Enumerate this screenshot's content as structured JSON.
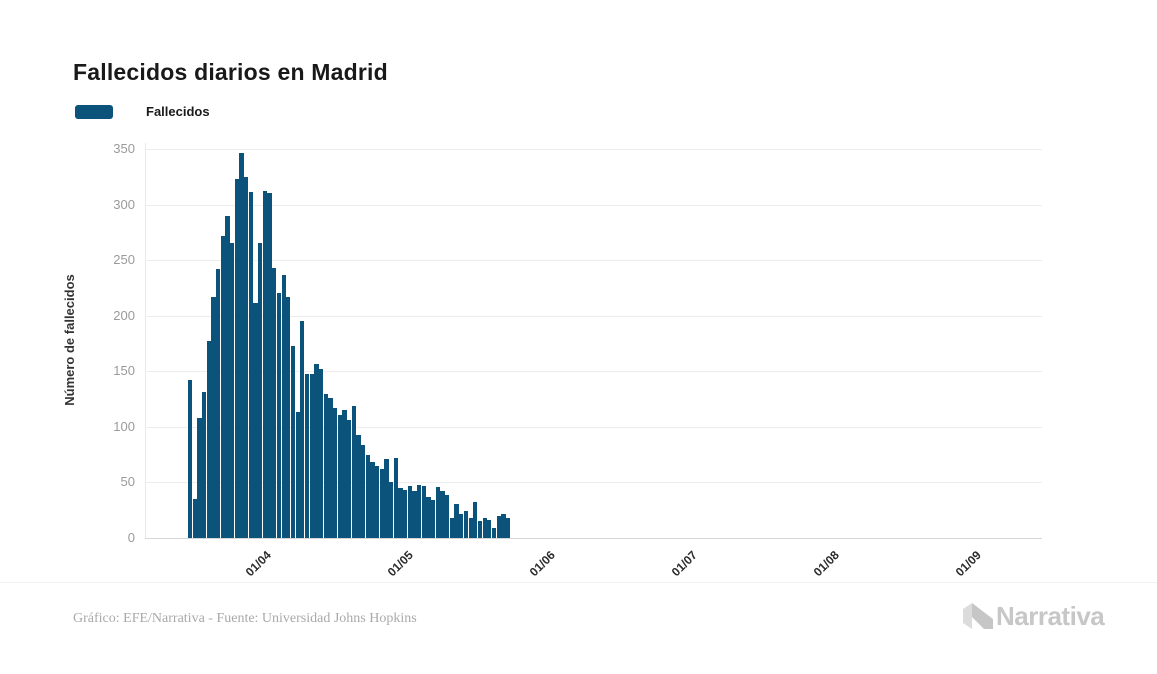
{
  "title": "Fallecidos diarios en Madrid",
  "legend": {
    "label": "Fallecidos",
    "swatch_color": "#0b537a"
  },
  "chart_data": {
    "type": "bar",
    "title": "Fallecidos diarios en Madrid",
    "xlabel": "",
    "ylabel": "Número de fallecidos",
    "ylim": [
      0,
      350
    ],
    "yticks": [
      0,
      50,
      100,
      150,
      200,
      250,
      300,
      350
    ],
    "xtick_labels": [
      "01/04",
      "01/05",
      "01/06",
      "01/07",
      "01/08",
      "01/09"
    ],
    "grid": "horizontal-only",
    "legend_position": "top-left",
    "series": [
      {
        "name": "Fallecidos",
        "color": "#0b537a",
        "values": [
          142,
          35,
          108,
          131,
          177,
          217,
          242,
          272,
          290,
          265,
          323,
          346,
          325,
          311,
          211,
          265,
          312,
          310,
          243,
          220,
          237,
          217,
          173,
          113,
          195,
          148,
          148,
          157,
          152,
          130,
          126,
          117,
          111,
          115,
          106,
          119,
          93,
          84,
          75,
          68,
          65,
          62,
          71,
          50,
          72,
          45,
          43,
          47,
          42,
          48,
          47,
          37,
          34,
          46,
          42,
          39,
          18,
          31,
          22,
          24,
          18,
          32,
          15,
          18,
          16,
          9,
          20,
          22,
          18
        ]
      }
    ]
  },
  "footer": {
    "credit": "Gráfico: EFE/Narrativa - Fuente: Universidad Johns Hopkins",
    "logo_text": "Narrativa"
  },
  "colors": {
    "bar": "#0b537a",
    "grid": "#ededed",
    "axis_line": "#d6d6d6",
    "y_tick_text": "#9a9a9a",
    "x_tick_text": "#2b2b2b",
    "title_text": "#191919",
    "credit_text": "#a9a9a9",
    "logo_gray": "#c7c7c7"
  }
}
